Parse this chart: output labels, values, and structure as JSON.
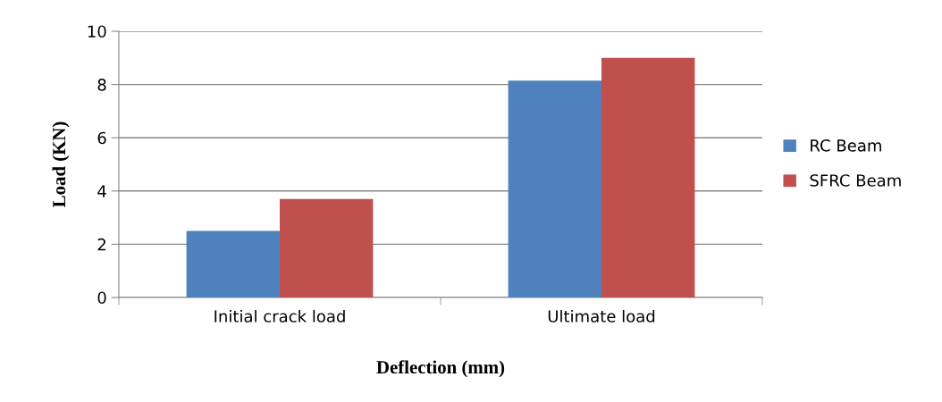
{
  "chart_data": {
    "type": "bar",
    "xlabel": "Deflection (mm)",
    "ylabel": "Load (KN)",
    "categories": [
      "Initial crack load",
      "Ultimate load"
    ],
    "series": [
      {
        "name": "RC Beam",
        "color": "#4f81bd",
        "values": [
          2.5,
          8.15
        ]
      },
      {
        "name": "SFRC Beam",
        "color": "#c0504d",
        "values": [
          3.7,
          9.0
        ]
      }
    ],
    "ylim": [
      0,
      10
    ],
    "yticks": [
      0,
      2,
      4,
      6,
      8,
      10
    ],
    "grid": "y",
    "legend": "right"
  }
}
